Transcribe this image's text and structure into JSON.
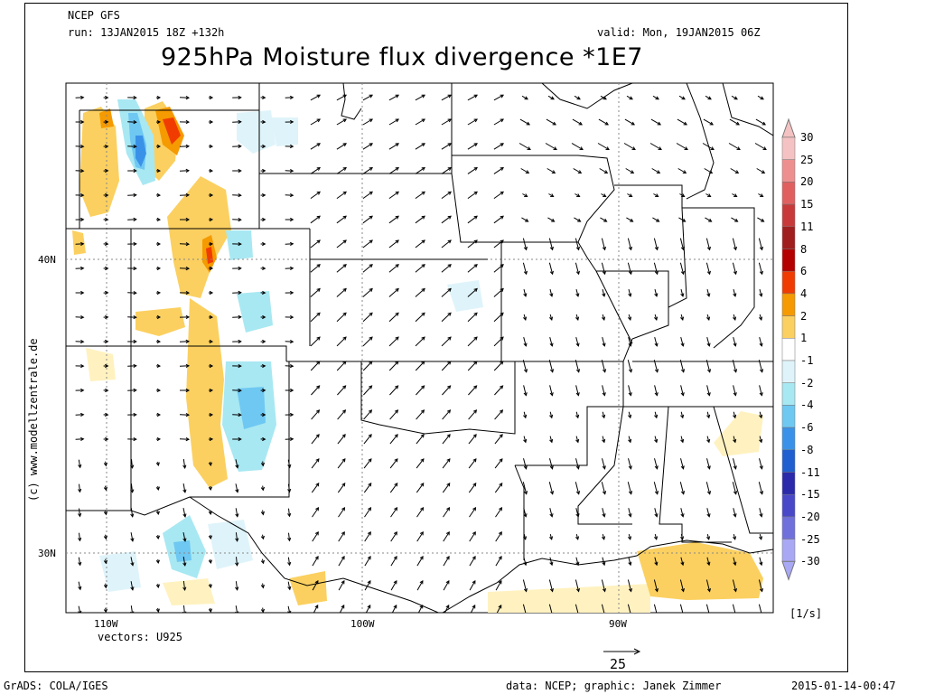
{
  "header": {
    "model": "NCEP GFS",
    "run": "run: 13JAN2015 18Z +132h",
    "valid": "valid: Mon, 19JAN2015 06Z",
    "title": "925hPa Moisture flux divergence *1E7"
  },
  "side_credit": "(c) www.modellzentrale.de",
  "map": {
    "lat_labels": [
      "40N",
      "30N"
    ],
    "lon_labels": [
      "110W",
      "100W",
      "90W"
    ],
    "vectors_label": "vectors: U925",
    "ref_vector_value": "25"
  },
  "colorbar": {
    "labels": [
      "30",
      "25",
      "20",
      "15",
      "11",
      "8",
      "6",
      "4",
      "2",
      "1",
      "-1",
      "-2",
      "-4",
      "-6",
      "-8",
      "-11",
      "-15",
      "-20",
      "-25",
      "-30"
    ],
    "colors": [
      "#f4c2c2",
      "#ee8f8f",
      "#e06060",
      "#c83a3a",
      "#a01e1e",
      "#b40000",
      "#f03c00",
      "#f59a00",
      "#fbd060",
      "#fff2c0",
      "#ffffff",
      "#dff4fa",
      "#a8e8f2",
      "#6ec8f2",
      "#3a92e8",
      "#1f5fd0",
      "#2a2aaa",
      "#4848c8",
      "#7070dc",
      "#a8a8f4"
    ],
    "unit": "[1/s]"
  },
  "footer": {
    "left": "GrADS: COLA/IGES",
    "center": "data: NCEP; graphic: Janek Zimmer",
    "right": "2015-01-14-00:47"
  }
}
